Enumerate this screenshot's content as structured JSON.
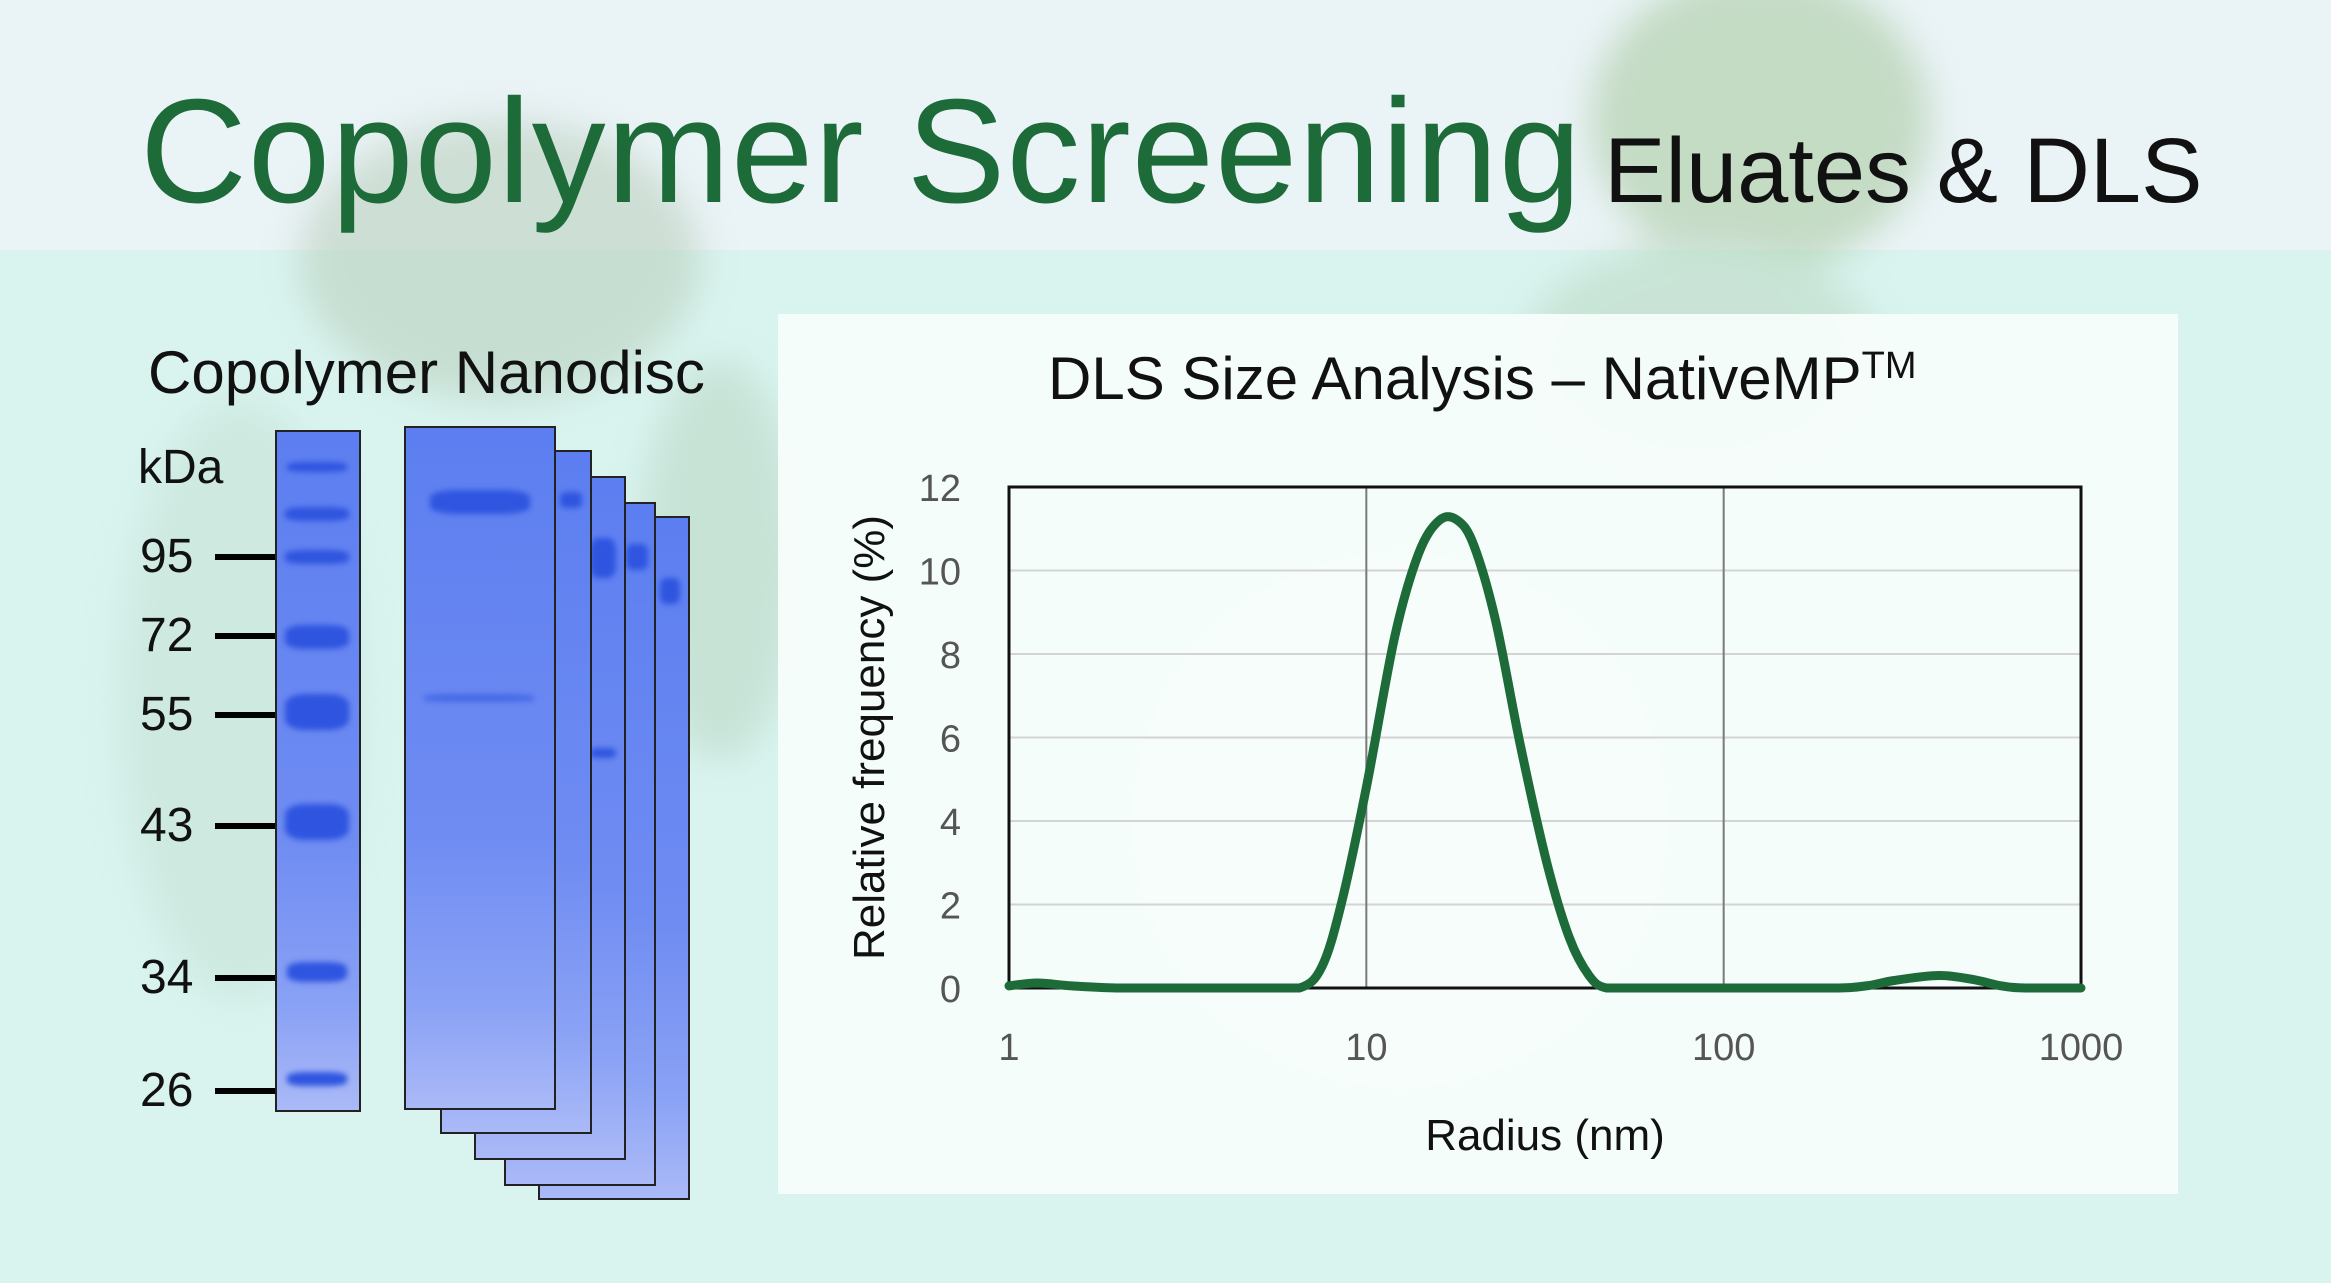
{
  "title": {
    "main": "Copolymer Screening",
    "sub": "Eluates & DLS"
  },
  "gel": {
    "title": "Copolymer Nanodisc",
    "unit_label": "kDa",
    "markers": [
      "95",
      "72",
      "55",
      "43",
      "34",
      "26"
    ]
  },
  "chart_data": {
    "type": "line",
    "title": "DLS Size Analysis – NativeMP",
    "title_superscript": "TM",
    "xlabel": "Radius (nm)",
    "ylabel": "Relative frequency (%)",
    "x_scale": "log",
    "xlim": [
      1,
      1000
    ],
    "ylim": [
      0,
      12
    ],
    "x_ticks": [
      "1",
      "10",
      "100",
      "1000"
    ],
    "y_ticks": [
      "0",
      "2",
      "4",
      "6",
      "8",
      "10",
      "12"
    ],
    "grid": true,
    "line_color": "#1e6b3a",
    "series": [
      {
        "x": [
          1,
          1.2,
          1.5,
          2,
          3,
          5,
          6.5,
          7.5,
          8.5,
          10,
          12,
          14,
          16,
          18,
          20,
          23,
          27,
          32,
          37,
          42,
          47,
          60,
          100,
          200,
          250,
          300,
          400,
          500,
          600,
          700,
          1000
        ],
        "values": [
          0.05,
          0.12,
          0.05,
          0,
          0,
          0,
          0,
          0.5,
          2.0,
          4.8,
          8.4,
          10.4,
          11.2,
          11.2,
          10.6,
          8.8,
          5.8,
          3.0,
          1.2,
          0.3,
          0,
          0,
          0,
          0,
          0.05,
          0.18,
          0.3,
          0.2,
          0.05,
          0,
          0
        ]
      }
    ]
  }
}
